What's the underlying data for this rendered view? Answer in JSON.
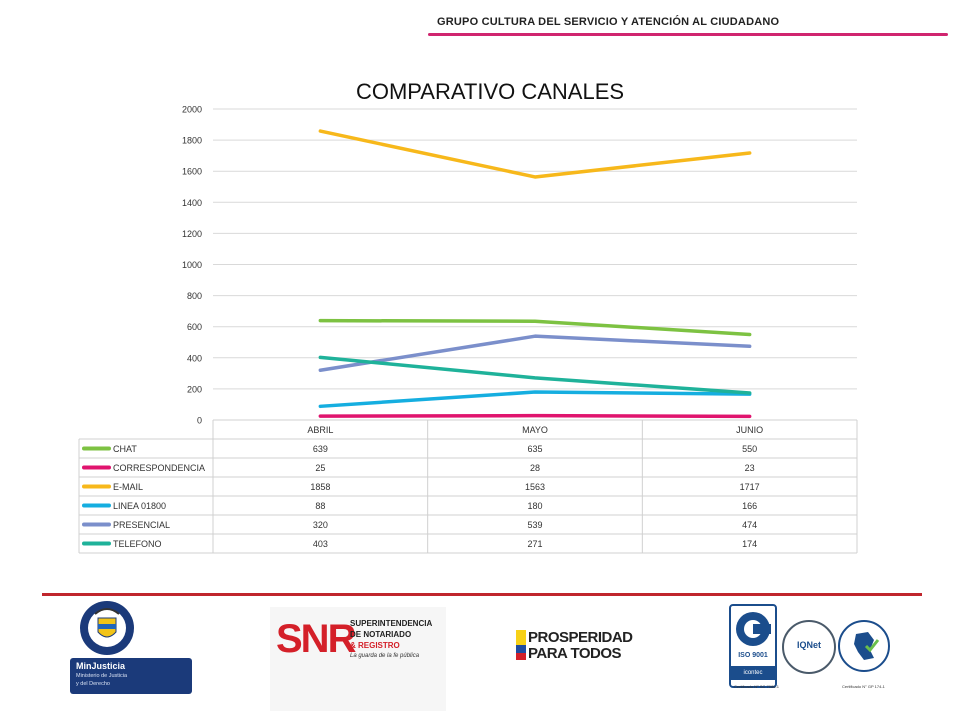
{
  "header": {
    "group_name": "GRUPO CULTURA DEL SERVICIO Y ATENCIÓN AL CIUDADANO"
  },
  "colors": {
    "header_line": "#d0256f",
    "footer_line": "#c0262d"
  },
  "chart_data": {
    "type": "line",
    "title": "COMPARATIVO CANALES",
    "categories": [
      "ABRIL",
      "MAYO",
      "JUNIO"
    ],
    "ylim": [
      0,
      2000
    ],
    "yticks": [
      0,
      200,
      400,
      600,
      800,
      1000,
      1200,
      1400,
      1600,
      1800,
      2000
    ],
    "grid": true,
    "legend": "data-table-below",
    "series": [
      {
        "name": "CHAT",
        "values": [
          639,
          635,
          550
        ],
        "color": "#7dc242"
      },
      {
        "name": "CORRESPONDENCIA",
        "values": [
          25,
          28,
          23
        ],
        "color": "#e0146e"
      },
      {
        "name": "E-MAIL",
        "values": [
          1858,
          1563,
          1717
        ],
        "color": "#f7b81b"
      },
      {
        "name": "LINEA 01800",
        "values": [
          88,
          180,
          166
        ],
        "color": "#15aee0"
      },
      {
        "name": "PRESENCIAL",
        "values": [
          320,
          539,
          474
        ],
        "color": "#7b8fcb"
      },
      {
        "name": "TELEFONO",
        "values": [
          403,
          271,
          174
        ],
        "color": "#1fb29a"
      }
    ]
  },
  "footer": {
    "minjusticia": {
      "seal_text": "REPÚBLICA DE COLOMBIA",
      "name": "MinJusticia",
      "line1": "Ministerio de Justicia",
      "line2": "y del Derecho"
    },
    "snr": {
      "acronym": "SNR",
      "line1": "SUPERINTENDENCIA",
      "line2": "DE NOTARIADO",
      "line3": "& REGISTRO",
      "tagline": "La guarda de la fe pública"
    },
    "prosperidad": {
      "line1": "PROSPERIDAD",
      "line2": "PARA TODOS"
    },
    "certs": {
      "iso": "ISO 9001",
      "icontec": "icontec",
      "iqnet": "IQNet",
      "cert1": "Certificado N° SC 7086-1",
      "cert2": "Certificado N° GP 174-1"
    }
  }
}
